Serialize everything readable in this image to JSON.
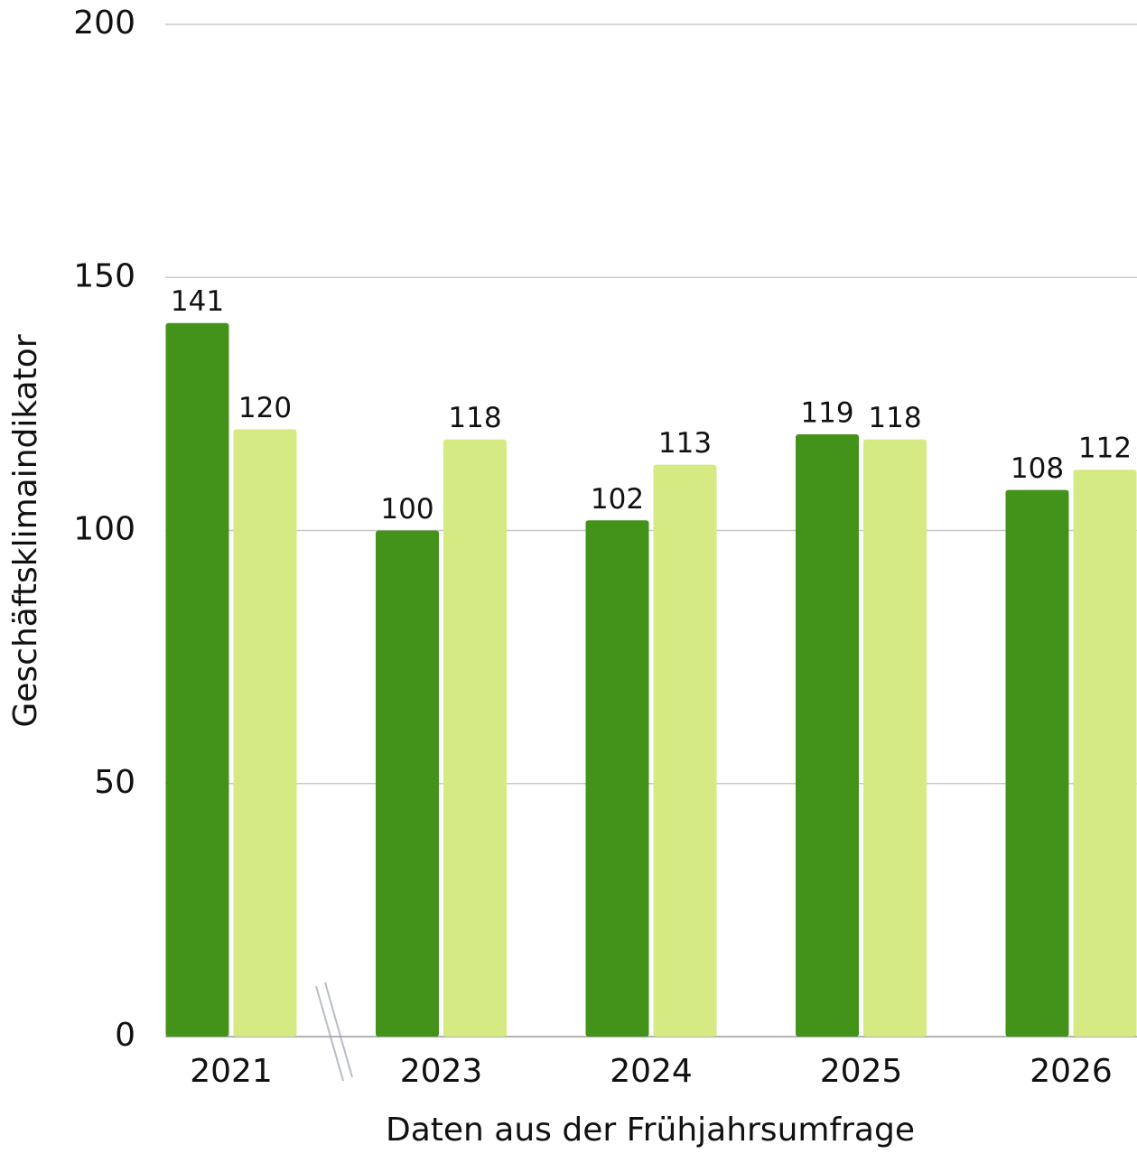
{
  "chart_data": {
    "type": "bar",
    "xlabel": "Daten aus der Frühjahrsumfrage",
    "ylabel": "Geschäftsklimaindikator",
    "categories": [
      "2021",
      "2023",
      "2024",
      "2025",
      "2026"
    ],
    "series": [
      {
        "color": "#43921a",
        "values": [
          141,
          100,
          102,
          119,
          108
        ]
      },
      {
        "color": "#d6ea84",
        "values": [
          120,
          118,
          113,
          118,
          112
        ]
      }
    ],
    "ylim": [
      0,
      200
    ],
    "yticks": [
      0,
      50,
      100,
      150,
      200
    ],
    "grid": true
  }
}
